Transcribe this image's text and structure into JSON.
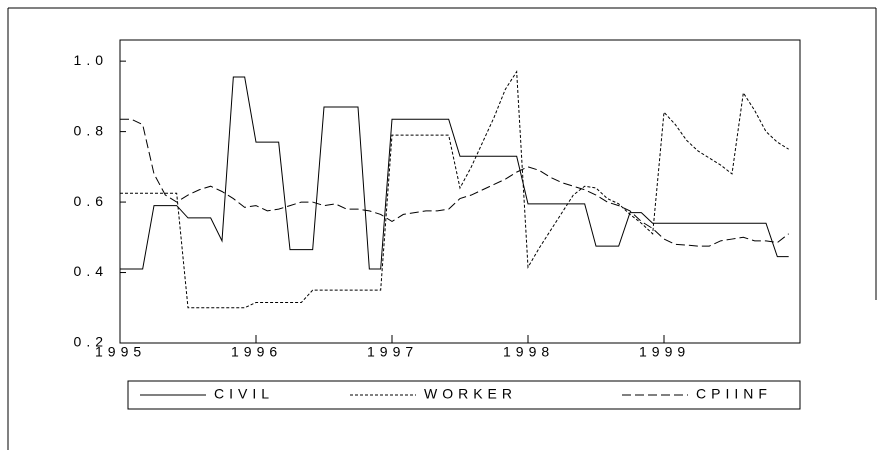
{
  "chart_data": {
    "type": "line",
    "categories": [
      "1995",
      null,
      null,
      null,
      null,
      null,
      null,
      null,
      null,
      null,
      null,
      null,
      "1996",
      null,
      null,
      null,
      null,
      null,
      null,
      null,
      null,
      null,
      null,
      null,
      "1997",
      null,
      null,
      null,
      null,
      null,
      null,
      null,
      null,
      null,
      null,
      null,
      "1998",
      null,
      null,
      null,
      null,
      null,
      null,
      null,
      null,
      null,
      null,
      null,
      "1999",
      null,
      null,
      null,
      null,
      null,
      null,
      null,
      null,
      null,
      null,
      null
    ],
    "ylim": [
      0.2,
      1.06
    ],
    "yticks": [
      0.2,
      0.4,
      0.6,
      0.8,
      {
        "value": 1,
        "label": "1.0"
      }
    ],
    "series": [
      {
        "name": "CIVIL",
        "color": "#000000",
        "dash": "none",
        "values": [
          0.41,
          0.41,
          0.41,
          0.59,
          0.59,
          0.59,
          0.555,
          0.555,
          0.555,
          0.49,
          0.955,
          0.955,
          0.77,
          0.77,
          0.77,
          0.465,
          0.465,
          0.465,
          0.87,
          0.87,
          0.87,
          0.87,
          0.41,
          0.41,
          0.835,
          0.835,
          0.835,
          0.835,
          0.835,
          0.835,
          0.73,
          0.73,
          0.73,
          0.73,
          0.73,
          0.73,
          0.595,
          0.595,
          0.595,
          0.595,
          0.595,
          0.595,
          0.475,
          0.475,
          0.475,
          0.57,
          0.57,
          0.54,
          0.54,
          0.54,
          0.54,
          0.54,
          0.54,
          0.54,
          0.54,
          0.54,
          0.54,
          0.54,
          0.445,
          0.445
        ]
      },
      {
        "name": "WORKER",
        "color": "#000000",
        "dash": "3,2",
        "values": [
          0.625,
          0.625,
          0.625,
          0.625,
          0.625,
          0.625,
          0.3,
          0.3,
          0.3,
          0.3,
          0.3,
          0.3,
          0.315,
          0.315,
          0.315,
          0.315,
          0.315,
          0.35,
          0.35,
          0.35,
          0.35,
          0.35,
          0.35,
          0.35,
          0.79,
          0.79,
          0.79,
          0.79,
          0.79,
          0.79,
          0.64,
          0.7,
          0.77,
          0.84,
          0.92,
          0.97,
          0.415,
          0.47,
          0.52,
          0.57,
          0.62,
          0.645,
          0.64,
          0.61,
          0.595,
          0.565,
          0.54,
          0.51,
          0.855,
          0.82,
          0.775,
          0.745,
          0.725,
          0.705,
          0.68,
          0.91,
          0.86,
          0.8,
          0.77,
          0.75
        ]
      },
      {
        "name": "CPIINF",
        "color": "#000000",
        "dash": "9,4",
        "values": [
          0.835,
          0.835,
          0.82,
          0.68,
          0.62,
          0.6,
          0.62,
          0.635,
          0.645,
          0.63,
          0.61,
          0.585,
          0.59,
          0.575,
          0.58,
          0.59,
          0.6,
          0.6,
          0.59,
          0.595,
          0.58,
          0.58,
          0.575,
          0.565,
          0.545,
          0.565,
          0.57,
          0.575,
          0.575,
          0.58,
          0.61,
          0.62,
          0.635,
          0.65,
          0.665,
          0.685,
          0.7,
          0.69,
          0.67,
          0.655,
          0.645,
          0.635,
          0.62,
          0.6,
          0.59,
          0.575,
          0.545,
          0.525,
          0.495,
          0.48,
          0.478,
          0.475,
          0.475,
          0.49,
          0.495,
          0.5,
          0.49,
          0.49,
          0.485,
          0.51
        ]
      }
    ]
  }
}
